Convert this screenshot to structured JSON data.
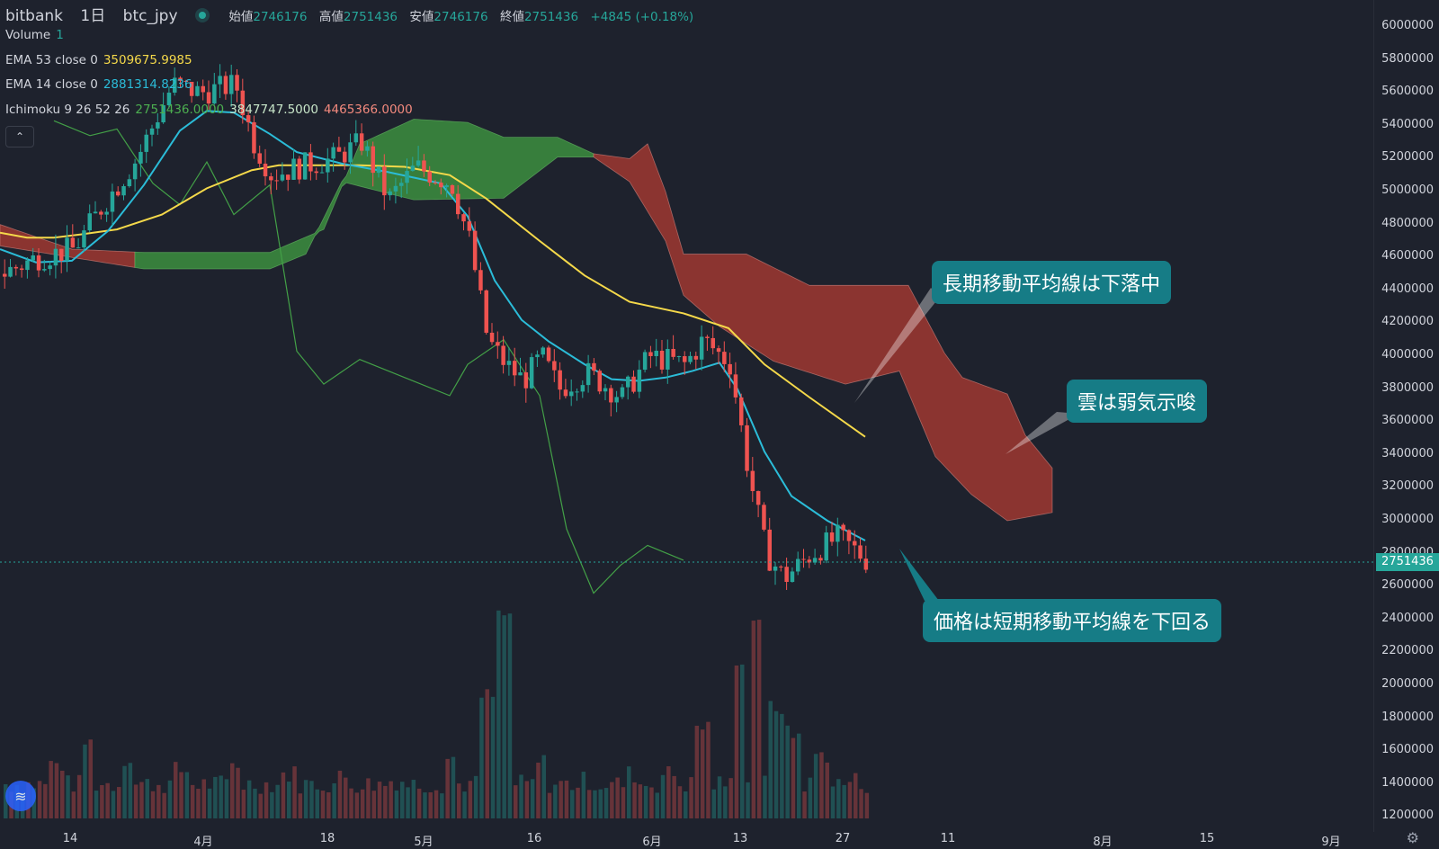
{
  "header": {
    "exchange": "bitbank",
    "interval": "1日",
    "symbol": "btc_jpy",
    "open_label": "始値",
    "open": "2746176",
    "high_label": "高値",
    "high": "2751436",
    "low_label": "安値",
    "low": "2746176",
    "close_label": "終値",
    "close": "2751436",
    "change": "+4845 (+0.18%)"
  },
  "indicators": {
    "volume": {
      "name": "Volume",
      "value": "1"
    },
    "ema53": {
      "name": "EMA 53 close 0",
      "value": "3509675.9985",
      "color": "#f5d94a"
    },
    "ema14": {
      "name": "EMA 14 close 0",
      "value": "2881314.8236",
      "color": "#2bbcd8"
    },
    "ichimoku": {
      "name": "Ichimoku 9 26 52 26",
      "v1": "2751436.0000",
      "v2": "3847747.5000",
      "v3": "4465366.0000"
    }
  },
  "price_axis": [
    "6000000",
    "5800000",
    "5600000",
    "5400000",
    "5200000",
    "5000000",
    "4800000",
    "4600000",
    "4400000",
    "4200000",
    "4000000",
    "3800000",
    "3600000",
    "3400000",
    "3200000",
    "3000000",
    "2800000",
    "2600000",
    "2400000",
    "2200000",
    "2000000",
    "1800000",
    "1600000",
    "1400000",
    "1200000"
  ],
  "current_price": "2751436",
  "time_axis": [
    "14",
    "4月",
    "18",
    "5月",
    "16",
    "6月",
    "13",
    "27",
    "11",
    "8月",
    "15",
    "9月"
  ],
  "callouts": {
    "long_ma": "長期移動平均線は下落中",
    "cloud": "雲は弱気示唆",
    "price": "価格は短期移動平均線を下回る"
  },
  "colors": {
    "up": "#26a69a",
    "down": "#ef5350",
    "cloud_bull": "#377e3c",
    "cloud_bear": "#8b3430",
    "lagging": "#4caf50",
    "callout": "#167c86"
  },
  "chart_data": {
    "type": "candlestick",
    "title": "btc_jpy",
    "y_range": [
      1200000,
      6000000
    ],
    "ema53": [
      [
        0,
        4750000
      ],
      [
        30,
        4720000
      ],
      [
        60,
        4720000
      ],
      [
        90,
        4740000
      ],
      [
        130,
        4770000
      ],
      [
        180,
        4860000
      ],
      [
        230,
        5020000
      ],
      [
        280,
        5130000
      ],
      [
        310,
        5160000
      ],
      [
        400,
        5160000
      ],
      [
        450,
        5150000
      ],
      [
        500,
        5100000
      ],
      [
        540,
        4960000
      ],
      [
        600,
        4700000
      ],
      [
        650,
        4490000
      ],
      [
        700,
        4330000
      ],
      [
        760,
        4260000
      ],
      [
        810,
        4170000
      ],
      [
        850,
        3950000
      ],
      [
        900,
        3750000
      ],
      [
        962,
        3510000
      ]
    ],
    "ema14": [
      [
        0,
        4650000
      ],
      [
        40,
        4570000
      ],
      [
        80,
        4580000
      ],
      [
        120,
        4760000
      ],
      [
        160,
        5040000
      ],
      [
        200,
        5370000
      ],
      [
        230,
        5490000
      ],
      [
        260,
        5480000
      ],
      [
        300,
        5350000
      ],
      [
        330,
        5240000
      ],
      [
        380,
        5170000
      ],
      [
        430,
        5120000
      ],
      [
        490,
        5050000
      ],
      [
        520,
        4850000
      ],
      [
        550,
        4460000
      ],
      [
        580,
        4220000
      ],
      [
        610,
        4090000
      ],
      [
        650,
        3950000
      ],
      [
        680,
        3860000
      ],
      [
        710,
        3850000
      ],
      [
        740,
        3870000
      ],
      [
        770,
        3910000
      ],
      [
        800,
        3960000
      ],
      [
        820,
        3800000
      ],
      [
        850,
        3420000
      ],
      [
        880,
        3150000
      ],
      [
        920,
        3000000
      ],
      [
        962,
        2880000
      ]
    ],
    "lagging": [
      [
        60,
        5430000
      ],
      [
        100,
        5340000
      ],
      [
        130,
        5380000
      ],
      [
        170,
        5050000
      ],
      [
        200,
        4920000
      ],
      [
        230,
        5180000
      ],
      [
        260,
        4860000
      ],
      [
        300,
        5040000
      ],
      [
        330,
        4030000
      ],
      [
        360,
        3830000
      ],
      [
        400,
        3980000
      ],
      [
        450,
        3870000
      ],
      [
        500,
        3760000
      ],
      [
        520,
        3950000
      ],
      [
        560,
        4100000
      ],
      [
        600,
        3760000
      ],
      [
        630,
        2950000
      ],
      [
        660,
        2560000
      ],
      [
        690,
        2730000
      ],
      [
        720,
        2850000
      ],
      [
        760,
        2760000
      ]
    ],
    "cloud_upper": [
      [
        0,
        4800000
      ],
      [
        80,
        4650000
      ],
      [
        160,
        4630000
      ],
      [
        300,
        4630000
      ],
      [
        360,
        4770000
      ],
      [
        400,
        5290000
      ],
      [
        460,
        5440000
      ],
      [
        520,
        5420000
      ],
      [
        560,
        5330000
      ],
      [
        620,
        5330000
      ],
      [
        660,
        5230000
      ],
      [
        700,
        5200000
      ],
      [
        720,
        5290000
      ],
      [
        740,
        5000000
      ],
      [
        760,
        4620000
      ],
      [
        830,
        4620000
      ],
      [
        900,
        4430000
      ],
      [
        1010,
        4430000
      ],
      [
        1050,
        4020000
      ],
      [
        1070,
        3870000
      ],
      [
        1120,
        3770000
      ],
      [
        1140,
        3520000
      ],
      [
        1170,
        3320000
      ]
    ],
    "cloud_lower": [
      [
        0,
        4670000
      ],
      [
        80,
        4600000
      ],
      [
        160,
        4530000
      ],
      [
        300,
        4530000
      ],
      [
        340,
        4620000
      ],
      [
        380,
        5060000
      ],
      [
        460,
        4950000
      ],
      [
        560,
        4960000
      ],
      [
        620,
        5210000
      ],
      [
        660,
        5210000
      ],
      [
        700,
        5060000
      ],
      [
        740,
        4700000
      ],
      [
        760,
        4370000
      ],
      [
        800,
        4180000
      ],
      [
        860,
        3970000
      ],
      [
        940,
        3830000
      ],
      [
        1000,
        3910000
      ],
      [
        1040,
        3390000
      ],
      [
        1080,
        3160000
      ],
      [
        1120,
        3000000
      ],
      [
        1170,
        3050000
      ]
    ],
    "volume": [
      [
        20,
        1400000
      ],
      [
        60,
        1520000
      ],
      [
        95,
        1650000
      ],
      [
        140,
        1560000
      ],
      [
        200,
        1480000
      ],
      [
        260,
        1520000
      ],
      [
        320,
        1460000
      ],
      [
        380,
        1440000
      ],
      [
        440,
        1420000
      ],
      [
        500,
        1560000
      ],
      [
        540,
        1930000
      ],
      [
        560,
        2420000
      ],
      [
        600,
        1530000
      ],
      [
        650,
        1420000
      ],
      [
        700,
        1460000
      ],
      [
        740,
        1460000
      ],
      [
        780,
        1750000
      ],
      [
        820,
        2170000
      ],
      [
        838,
        2420000
      ],
      [
        860,
        1870000
      ],
      [
        880,
        1700000
      ],
      [
        910,
        1580000
      ],
      [
        945,
        1420000
      ],
      [
        960,
        1400000
      ]
    ]
  }
}
